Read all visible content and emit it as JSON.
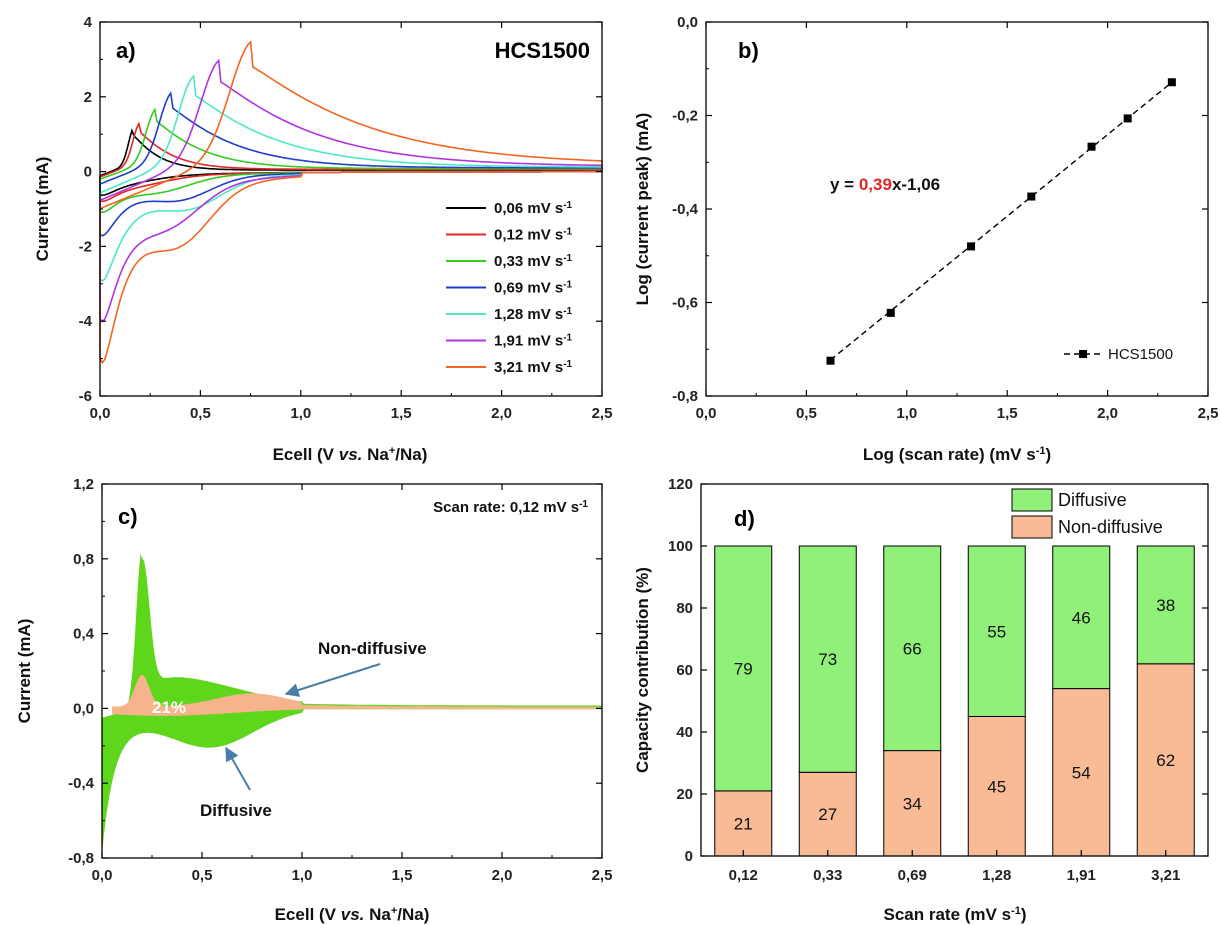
{
  "chart_data": [
    {
      "panel": "a)",
      "type": "line",
      "title": "HCS1500",
      "xlabel": "Ecell (V vs. Na+/Na)",
      "ylabel": "Current (mA)",
      "xlim": [
        0,
        2.5
      ],
      "ylim": [
        -6,
        4
      ],
      "xticks": [
        "0,0",
        "0,5",
        "1,0",
        "1,5",
        "2,0",
        "2,5"
      ],
      "yticks": [
        "-6",
        "-4",
        "-2",
        "0",
        "2",
        "4"
      ],
      "series": [
        {
          "name": "0,06 mV s-1",
          "color": "#000000",
          "peak": {
            "x": 0.17,
            "y": 0.95
          },
          "cathodic_min": -0.55,
          "cathodic_hump": {
            "x": 0.15,
            "y": -0.15
          },
          "width": 0.04,
          "decay": 0.12,
          "tail": 0.04
        },
        {
          "name": "0,12 mV s-1",
          "color": "#e32626",
          "peak": {
            "x": 0.2,
            "y": 1.05
          },
          "cathodic_min": -0.7,
          "cathodic_hump": {
            "x": 0.2,
            "y": -0.25
          },
          "width": 0.05,
          "decay": 0.15,
          "tail": 0.06
        },
        {
          "name": "0,33 mV s-1",
          "color": "#33cc1f",
          "peak": {
            "x": 0.28,
            "y": 1.35
          },
          "cathodic_min": -1.0,
          "cathodic_hump": {
            "x": 0.3,
            "y": -0.55
          },
          "width": 0.07,
          "decay": 0.22,
          "tail": 0.08
        },
        {
          "name": "0,69 mV s-1",
          "color": "#1f3fc8",
          "peak": {
            "x": 0.36,
            "y": 1.7
          },
          "cathodic_min": -1.65,
          "cathodic_hump": {
            "x": 0.4,
            "y": -0.85
          },
          "width": 0.09,
          "decay": 0.3,
          "tail": 0.1
        },
        {
          "name": "1,28 mV s-1",
          "color": "#4de8c8",
          "peak": {
            "x": 0.47,
            "y": 2.05
          },
          "cathodic_min": -2.85,
          "cathodic_hump": {
            "x": 0.45,
            "y": -1.05
          },
          "width": 0.11,
          "decay": 0.38,
          "tail": 0.12
        },
        {
          "name": "1,91 mV s-1",
          "color": "#b034e0",
          "peak": {
            "x": 0.6,
            "y": 2.4
          },
          "cathodic_min": -3.85,
          "cathodic_hump": {
            "x": 0.35,
            "y": -1.35
          },
          "width": 0.14,
          "decay": 0.45,
          "tail": 0.14
        },
        {
          "name": "3,21 mV s-1",
          "color": "#f26522",
          "peak": {
            "x": 0.76,
            "y": 2.8
          },
          "cathodic_min": -4.95,
          "cathodic_hump": {
            "x": 0.4,
            "y": -2.05
          },
          "width": 0.16,
          "decay": 0.55,
          "tail": 0.18
        }
      ]
    },
    {
      "panel": "b)",
      "type": "scatter",
      "xlabel": "Log (scan rate) (mV s-1)",
      "ylabel": "Log (current peak) (mA)",
      "xlim": [
        0,
        2.5
      ],
      "ylim": [
        -0.9,
        0
      ],
      "xticks": [
        "0,0",
        "0,5",
        "1,0",
        "1,5",
        "2,0",
        "2,5"
      ],
      "yticks": [
        "-0,8",
        "-0,6",
        "-0,4",
        "-0,2",
        "0,0"
      ],
      "series": [
        {
          "name": "HCS1500",
          "color": "#000000",
          "points": [
            [
              0.62,
              -0.815
            ],
            [
              0.92,
              -0.7
            ],
            [
              1.32,
              -0.54
            ],
            [
              1.62,
              -0.42
            ],
            [
              1.92,
              -0.3
            ],
            [
              2.1,
              -0.232
            ],
            [
              2.32,
              -0.145
            ]
          ]
        }
      ],
      "fit": {
        "slope": 0.39,
        "intercept": -1.06,
        "label_prefix": "y = ",
        "label_slope": "0,39",
        "label_suffix": "x-1,06"
      },
      "legend": "bottom-right"
    },
    {
      "panel": "c)",
      "type": "area",
      "xlabel": "Ecell (V vs. Na+/Na)",
      "ylabel": "Current (mA)",
      "xlim": [
        0,
        2.5
      ],
      "ylim": [
        -0.8,
        1.2
      ],
      "xticks": [
        "0,0",
        "0,5",
        "1,0",
        "1,5",
        "2,0",
        "2,5"
      ],
      "yticks": [
        "-0,8",
        "-0,4",
        "0,0",
        "0,4",
        "0,8",
        "1,2"
      ],
      "annotation": "Scan rate: 0,12 mV s-1",
      "labels": {
        "non_diffusive": "Non-diffusive",
        "diffusive": "Diffusive",
        "percent": "21%"
      },
      "series": [
        {
          "name": "Diffusive",
          "color": "#5ed61b",
          "peak": {
            "x": 0.2,
            "y": 0.8
          },
          "cathodic_min": -0.65
        },
        {
          "name": "Non-diffusive",
          "color": "#f7b48c",
          "peak": {
            "x": 0.2,
            "y": 0.19
          }
        }
      ]
    },
    {
      "panel": "d)",
      "type": "bar",
      "stacked": true,
      "xlabel": "Scan rate (mV s-1)",
      "ylabel": "Capacity contribution (%)",
      "ylim": [
        0,
        120
      ],
      "yticks": [
        "0",
        "20",
        "40",
        "60",
        "80",
        "100",
        "120"
      ],
      "categories": [
        "0,12",
        "0,33",
        "0,69",
        "1,28",
        "1,91",
        "3,21"
      ],
      "series": [
        {
          "name": "Non-diffusive",
          "color": "#f9bb95",
          "values": [
            21,
            27,
            34,
            45,
            54,
            62
          ]
        },
        {
          "name": "Diffusive",
          "color": "#90f07a",
          "values": [
            79,
            73,
            66,
            55,
            46,
            38
          ]
        }
      ],
      "legend": "top-right"
    }
  ]
}
